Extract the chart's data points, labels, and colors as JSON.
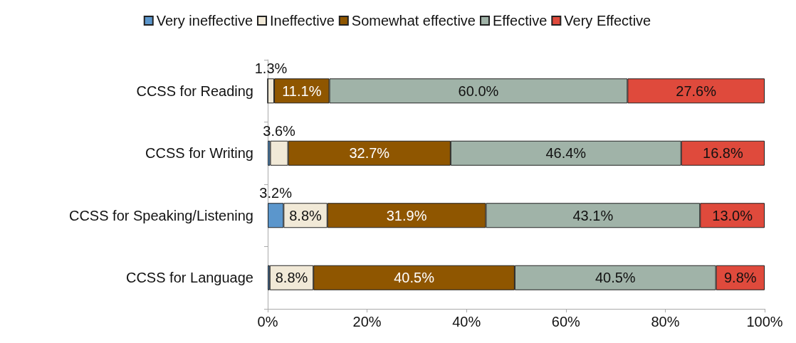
{
  "chart_data": {
    "type": "bar",
    "orientation": "horizontal",
    "stacked": true,
    "categories": [
      "CCSS for Reading",
      "CCSS for Writing",
      "CCSS for Speaking/Listening",
      "CCSS for Language"
    ],
    "series": [
      {
        "name": "Very ineffective",
        "color": "#5b96cc",
        "values": [
          0,
          0.5,
          3.2,
          0.4
        ],
        "value_labels": [
          null,
          null,
          "3.2%",
          null
        ]
      },
      {
        "name": "Ineffective",
        "color": "#f1e9d7",
        "values": [
          1.3,
          3.6,
          8.8,
          8.8
        ],
        "value_labels": [
          "1.3%",
          "3.6%",
          "8.8%",
          "8.8%"
        ]
      },
      {
        "name": "Somewhat effective",
        "color": "#8f5600",
        "values": [
          11.1,
          32.7,
          31.9,
          40.5
        ],
        "value_labels": [
          "11.1%",
          "32.7%",
          "31.9%",
          "40.5%"
        ]
      },
      {
        "name": "Effective",
        "color": "#a0b3a8",
        "values": [
          60.0,
          46.4,
          43.1,
          40.5
        ],
        "value_labels": [
          "60.0%",
          "46.4%",
          "43.1%",
          "40.5%"
        ]
      },
      {
        "name": "Very Effective",
        "color": "#df4a3c",
        "values": [
          27.6,
          16.8,
          13.0,
          9.8
        ],
        "value_labels": [
          "27.6%",
          "16.8%",
          "13.0%",
          "9.8%"
        ]
      }
    ],
    "xlim": [
      0,
      100
    ],
    "xticks": [
      {
        "value": 0,
        "label": "0%"
      },
      {
        "value": 20,
        "label": "20%"
      },
      {
        "value": 40,
        "label": "40%"
      },
      {
        "value": 60,
        "label": "60%"
      },
      {
        "value": 80,
        "label": "80%"
      },
      {
        "value": 100,
        "label": "100%"
      }
    ],
    "grid": false,
    "legend": "top"
  }
}
